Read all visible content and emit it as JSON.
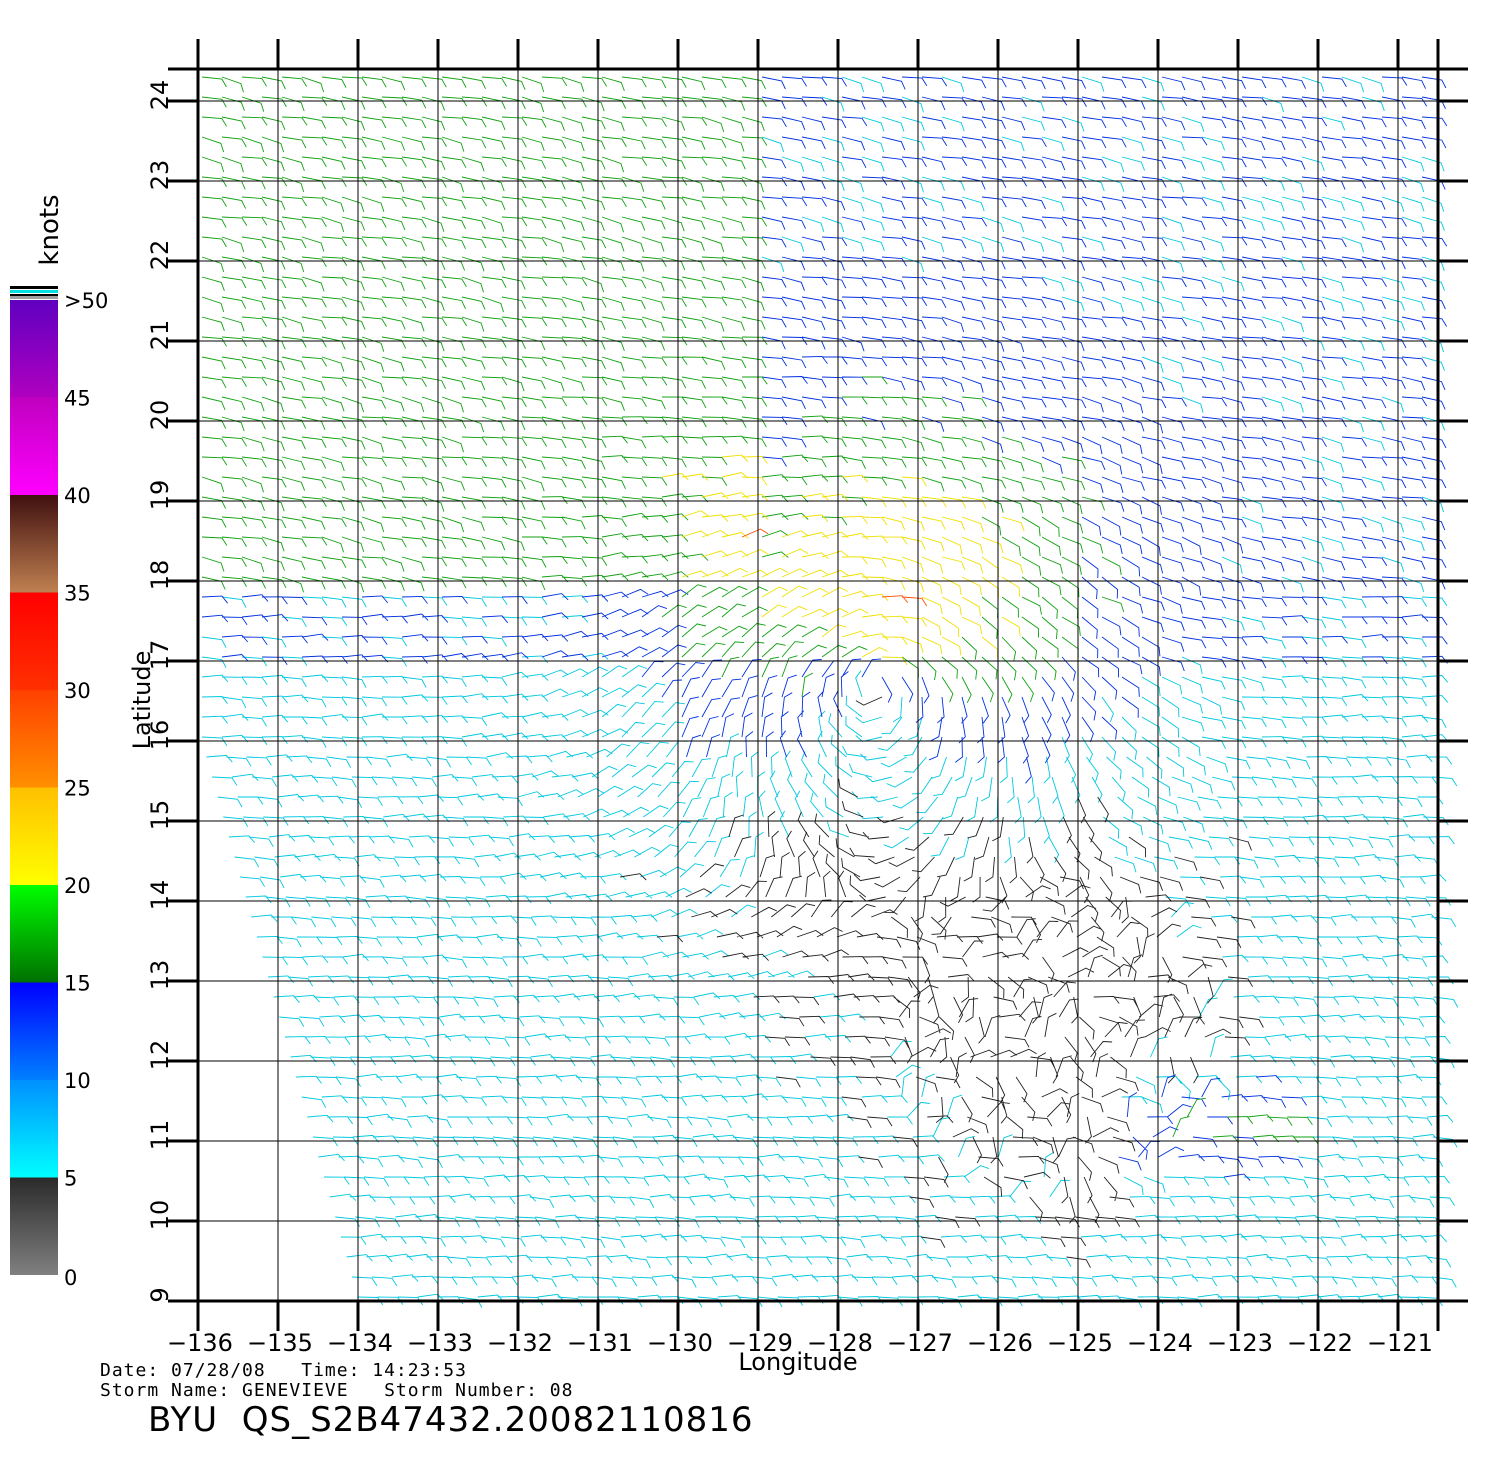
{
  "chart_data": {
    "type": "wind-barb-map",
    "xlabel": "Longitude",
    "ylabel": "Latitude",
    "xlim": [
      -136,
      -120.5
    ],
    "ylim": [
      9,
      24.4
    ],
    "x_ticks": [
      -136,
      -135,
      -134,
      -133,
      -132,
      -131,
      -130,
      -129,
      -128,
      -127,
      -126,
      -125,
      -124,
      -123,
      -122,
      -121
    ],
    "y_ticks": [
      9,
      10,
      11,
      12,
      13,
      14,
      15,
      16,
      17,
      18,
      19,
      20,
      21,
      22,
      23,
      24
    ],
    "x_tick_labels": [
      "−136",
      "−135",
      "−134",
      "−133",
      "−132",
      "−131",
      "−130",
      "−129",
      "−128",
      "−127",
      "−126",
      "−125",
      "−124",
      "−123",
      "−122",
      "−121"
    ],
    "y_tick_labels": [
      "9",
      "10",
      "11",
      "12",
      "13",
      "14",
      "15",
      "16",
      "17",
      "18",
      "19",
      "20",
      "21",
      "22",
      "23",
      "24"
    ],
    "grid": true,
    "storm_center": {
      "lon": -127.5,
      "lat": 16.8
    },
    "colorbar": {
      "title": "knots",
      "labels": [
        "0",
        "5",
        "10",
        "15",
        "20",
        "25",
        "30",
        "35",
        "40",
        "45",
        ">50"
      ],
      "bands": [
        {
          "min": 0,
          "max": 5,
          "from": "#808080",
          "to": "#2a2a2a"
        },
        {
          "min": 5,
          "max": 10,
          "from": "#00ffff",
          "to": "#0090ff"
        },
        {
          "min": 10,
          "max": 15,
          "from": "#0080ff",
          "to": "#0000ff"
        },
        {
          "min": 15,
          "max": 20,
          "from": "#007000",
          "to": "#00ff00"
        },
        {
          "min": 20,
          "max": 25,
          "from": "#ffff00",
          "to": "#ffc000"
        },
        {
          "min": 25,
          "max": 30,
          "from": "#ff9000",
          "to": "#ff4000"
        },
        {
          "min": 30,
          "max": 35,
          "from": "#ff3000",
          "to": "#ff0000"
        },
        {
          "min": 35,
          "max": 40,
          "from": "#c08050",
          "to": "#401010"
        },
        {
          "min": 40,
          "max": 45,
          "from": "#ff00ff",
          "to": "#c000c0"
        },
        {
          "min": 45,
          "max": 50,
          "from": "#b000c0",
          "to": "#6000c0"
        }
      ]
    }
  },
  "footer": {
    "date_line": "Date: 07/28/08   Time: 14:23:53",
    "storm_line": "Storm Name: GENEVIEVE   Storm Number: 08",
    "file_id": "BYU  QS_S2B47432.20082110816"
  },
  "colors": {
    "calm": "#202020",
    "light": "#00c8e0",
    "moderate": "#0030e0",
    "fresh": "#10a010",
    "strong": "#f0e000",
    "gale": "#ff5000"
  }
}
